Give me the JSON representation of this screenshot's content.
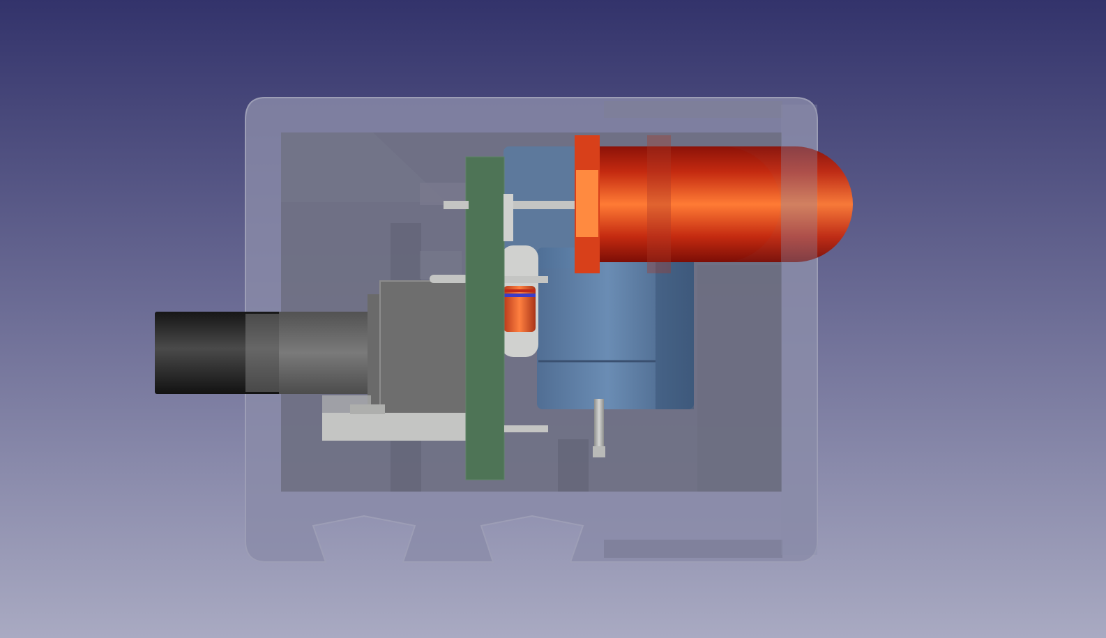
{
  "viewport": {
    "background_top": "#33336b",
    "background_bottom": "#a9aac2"
  },
  "model": {
    "parts": [
      {
        "name": "enclosure",
        "color": "#8b8ca8"
      },
      {
        "name": "enclosure-inner-cavity",
        "color": "#66677a"
      },
      {
        "name": "pcb-board",
        "color": "#4e7456"
      },
      {
        "name": "electrolytic-capacitor",
        "color": "#5577a0"
      },
      {
        "name": "led",
        "color": "#e0491a"
      },
      {
        "name": "resistor",
        "color": "#e06030"
      },
      {
        "name": "dc-power-jack",
        "color": "#6e6e6e"
      },
      {
        "name": "cable-plug",
        "color": "#222222"
      },
      {
        "name": "metal-leads",
        "color": "#c4c5c3"
      }
    ]
  }
}
